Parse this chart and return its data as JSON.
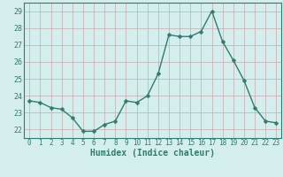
{
  "x": [
    0,
    1,
    2,
    3,
    4,
    5,
    6,
    7,
    8,
    9,
    10,
    11,
    12,
    13,
    14,
    15,
    16,
    17,
    18,
    19,
    20,
    21,
    22,
    23
  ],
  "y": [
    23.7,
    23.6,
    23.3,
    23.2,
    22.7,
    21.9,
    21.9,
    22.3,
    22.5,
    23.7,
    23.6,
    24.0,
    25.3,
    27.6,
    27.5,
    27.5,
    27.8,
    29.0,
    27.2,
    26.1,
    24.9,
    23.3,
    22.5,
    22.4
  ],
  "line_color": "#2e7d6e",
  "marker": "D",
  "markersize": 2.5,
  "linewidth": 1.0,
  "bg_color": "#d4eeee",
  "grid_color_v": "#c8a8a8",
  "grid_color_h": "#c8a8a8",
  "xlabel": "Humidex (Indice chaleur)",
  "ylim": [
    21.5,
    29.5
  ],
  "yticks": [
    22,
    23,
    24,
    25,
    26,
    27,
    28,
    29
  ],
  "xticks": [
    0,
    1,
    2,
    3,
    4,
    5,
    6,
    7,
    8,
    9,
    10,
    11,
    12,
    13,
    14,
    15,
    16,
    17,
    18,
    19,
    20,
    21,
    22,
    23
  ],
  "xlim": [
    -0.5,
    23.5
  ],
  "xlabel_fontsize": 7,
  "tick_fontsize": 5.5,
  "tick_color": "#2e7d6e",
  "spine_color": "#2e7d6e"
}
